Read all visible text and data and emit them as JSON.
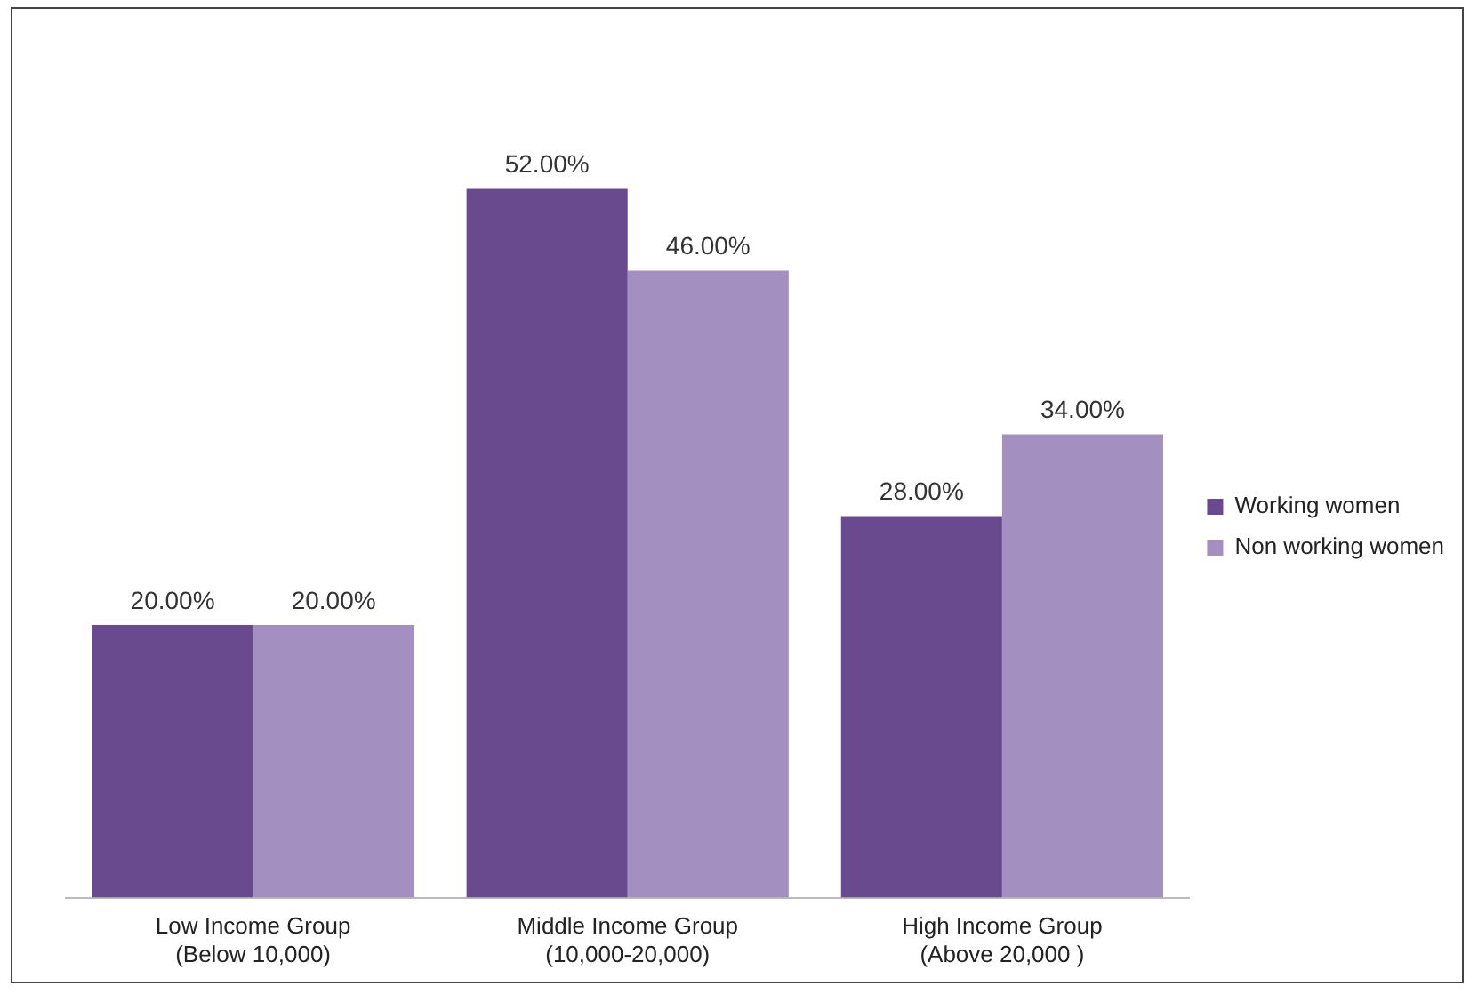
{
  "chart_data": {
    "type": "bar",
    "categories": [
      "Low Income Group\n(Below 10,000)",
      "Middle Income Group\n(10,000-20,000)",
      "High Income Group\n(Above 20,000 )"
    ],
    "series": [
      {
        "name": "Working women",
        "color": "#6a4a8f",
        "values": [
          20,
          52,
          28
        ],
        "value_labels": [
          "20.00%",
          "52.00%",
          "28.00%"
        ]
      },
      {
        "name": "Non working women",
        "color": "#a38fc0",
        "values": [
          20,
          46,
          34
        ],
        "value_labels": [
          "20.00%",
          "46.00%",
          "34.00%"
        ]
      }
    ],
    "legend": "right",
    "grid": false
  }
}
